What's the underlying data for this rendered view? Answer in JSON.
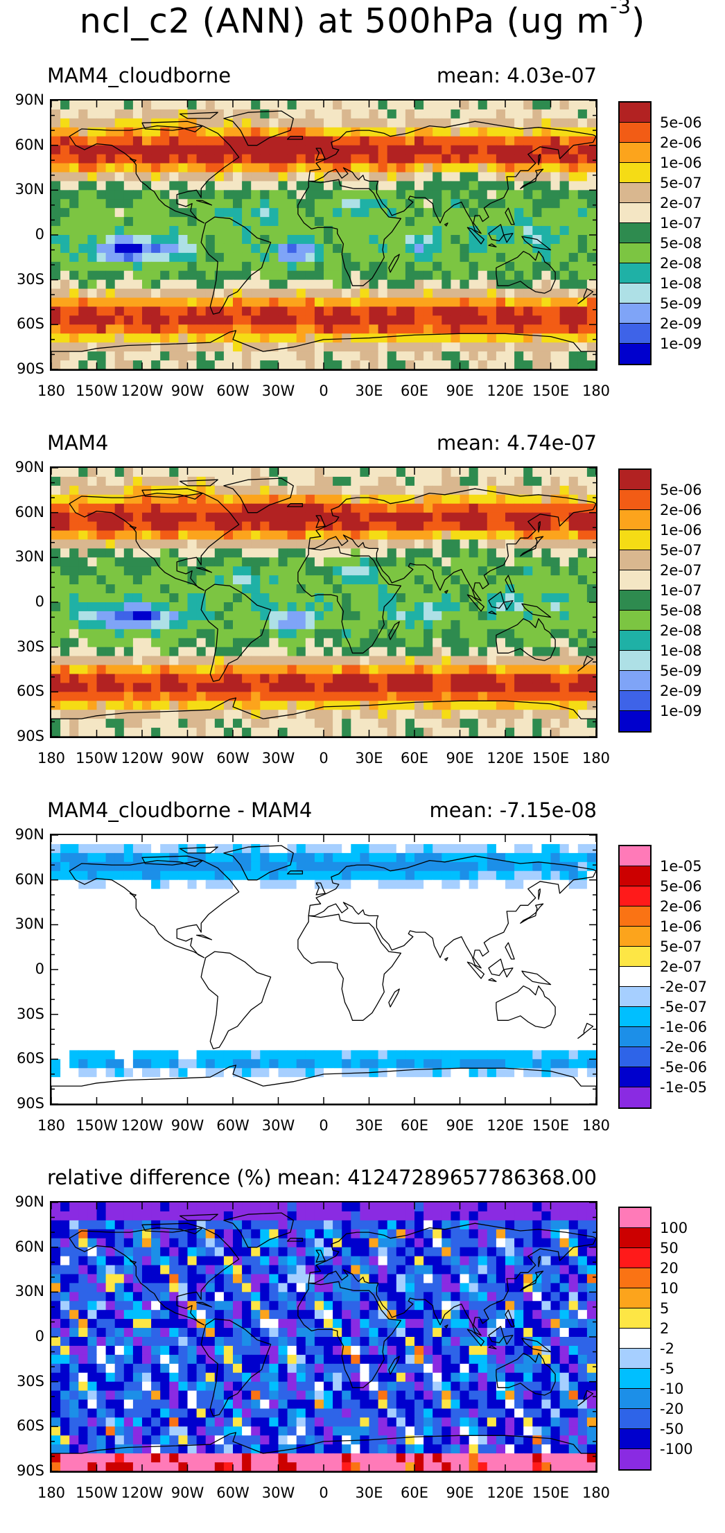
{
  "title": {
    "main": "ncl_c2 (ANN) at 500hPa (ug m",
    "exponent": "-3",
    "close": ")"
  },
  "axes": {
    "y_ticks": [
      "90N",
      "60N",
      "30N",
      "0",
      "30S",
      "60S",
      "90S"
    ],
    "x_ticks": [
      "180",
      "150W",
      "120W",
      "90W",
      "60W",
      "30W",
      "0",
      "30E",
      "60E",
      "90E",
      "120E",
      "150E",
      "180"
    ]
  },
  "colors": {
    "conc_scale": [
      "#0000cd",
      "#3e63e8",
      "#7fa4f7",
      "#aee0e6",
      "#1fb1a6",
      "#7cc542",
      "#2e8b4f",
      "#f4e6c4",
      "#d9b78f",
      "#f5dc15",
      "#fca41c",
      "#f25c15",
      "#b22222"
    ],
    "diff_scale": [
      "#8a2be2",
      "#0000cd",
      "#2e64e8",
      "#1c8fe8",
      "#00bfff",
      "#a6cfff",
      "#ffffff",
      "#fde645",
      "#fca41c",
      "#fa7314",
      "#ff1a1a",
      "#cc0000",
      "#ff7ab8"
    ],
    "coastline": "#000000",
    "missing": "#c8c8c8"
  },
  "panels": [
    {
      "name": "MAM4_cloudborne",
      "mean_text": "mean: 4.03e-07",
      "scale": "conc",
      "legend_labels": [
        "5e-06",
        "2e-06",
        "1e-06",
        "5e-07",
        "2e-07",
        "1e-07",
        "5e-08",
        "2e-08",
        "1e-08",
        "5e-09",
        "2e-09",
        "1e-09"
      ]
    },
    {
      "name": "MAM4",
      "mean_text": "mean: 4.74e-07",
      "scale": "conc",
      "legend_labels": [
        "5e-06",
        "2e-06",
        "1e-06",
        "5e-07",
        "2e-07",
        "1e-07",
        "5e-08",
        "2e-08",
        "1e-08",
        "5e-09",
        "2e-09",
        "1e-09"
      ]
    },
    {
      "name": "MAM4_cloudborne - MAM4",
      "mean_text": "mean: -7.15e-08",
      "scale": "diff",
      "legend_labels": [
        "1e-05",
        "5e-06",
        "2e-06",
        "1e-06",
        "5e-07",
        "2e-07",
        "-2e-07",
        "-5e-07",
        "-1e-06",
        "-2e-06",
        "-5e-06",
        "-1e-05"
      ]
    },
    {
      "name": "relative difference (%)",
      "mean_text": "mean: 41247289657786368.00",
      "scale": "rel",
      "legend_labels": [
        "100",
        "50",
        "20",
        "10",
        "5",
        "2",
        "-2",
        "-5",
        "-10",
        "-20",
        "-50",
        "-100"
      ]
    }
  ]
}
